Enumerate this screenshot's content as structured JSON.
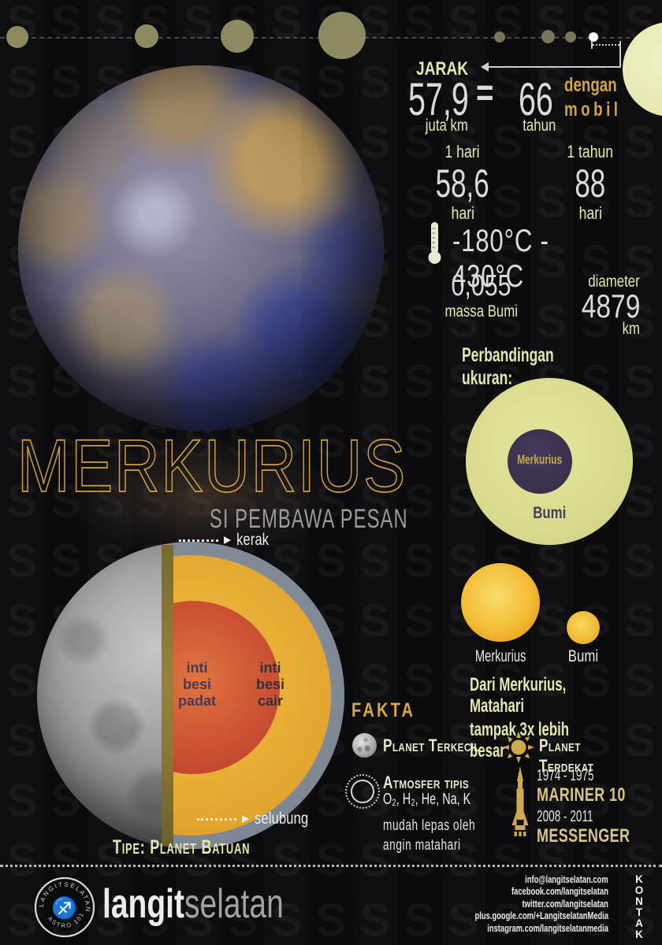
{
  "watermark": {
    "letter": "S"
  },
  "colors": {
    "background": "#0b0b0e",
    "accent_gold": "#d2a343",
    "label_cream": "#e6e6ae",
    "text_white": "#dcdce0",
    "earth_yellow": "#d8d98c",
    "core_red": "#bf4630",
    "mantle_yellow": "#dfa22d",
    "crust_gray": "#7e8894",
    "dark_purple": "#39304a"
  },
  "stats": {
    "distance": {
      "label": "JARAK",
      "value": "57,9",
      "unit": "juta km",
      "equals": "=",
      "car_value": "66",
      "car_unit": "tahun",
      "car_phrase_1": "dengan",
      "car_phrase_2": "mobil"
    },
    "day": {
      "label": "1 hari",
      "value": "58,6",
      "unit": "hari"
    },
    "year": {
      "label": "1 tahun",
      "value": "88",
      "unit": "hari"
    },
    "temperature": {
      "range": "-180°C - 430°C"
    },
    "mass": {
      "value": "0,055",
      "label": "massa Bumi"
    },
    "diameter": {
      "label": "diameter",
      "value": "4879",
      "unit": "km"
    }
  },
  "size_comparison": {
    "heading": "Perbandingan ukuran:",
    "mercury_label": "Merkurius",
    "earth_label": "Bumi"
  },
  "sun_view": {
    "mercury_label": "Merkurius",
    "earth_label": "Bumi",
    "caption_line1": "Dari Merkurius, Matahari",
    "caption_line2_normal": "tampak ",
    "caption_line2_bold": "3x lebih besar"
  },
  "title": {
    "name": "MERKURIUS",
    "tagline": "SI PEMBAWA PESAN"
  },
  "cross_section": {
    "crust_label": "kerak",
    "mantle_label": "selubung",
    "inner_core_label": "inti\nbesi\npadat",
    "outer_core_label": "inti\nbesi\ncair"
  },
  "type_row": {
    "text": "Tipe: Planet Batuan"
  },
  "fakta": {
    "heading": "FAKTA",
    "smallest": {
      "label": "Planet Terkecil"
    },
    "atmosphere": {
      "label": "Atmosfer tipis",
      "elements": "O₂, H₂, He, Na, K",
      "note_line1": "mudah lepas oleh",
      "note_line2": "angin matahari"
    },
    "closest": {
      "label": "Planet Terdekat"
    },
    "missions": [
      {
        "years": "1974 - 1975",
        "name": "MARINER 10"
      },
      {
        "years": "2008 - 2011",
        "name": "MESSENGER"
      }
    ]
  },
  "footer": {
    "badge_top": "LANGITSELATAN",
    "badge_bottom": "ASTRO 101",
    "wordmark_bold": "langit",
    "wordmark_light": "selatan",
    "contacts": [
      "info@langitselatan.com",
      "facebook.com/langitselatan",
      "twitter.com/langitselatan",
      "plus.google.com/+LangitselatanMedia",
      "instagram.com/langitselatanmedia"
    ],
    "contact_label": "KONTAK"
  }
}
